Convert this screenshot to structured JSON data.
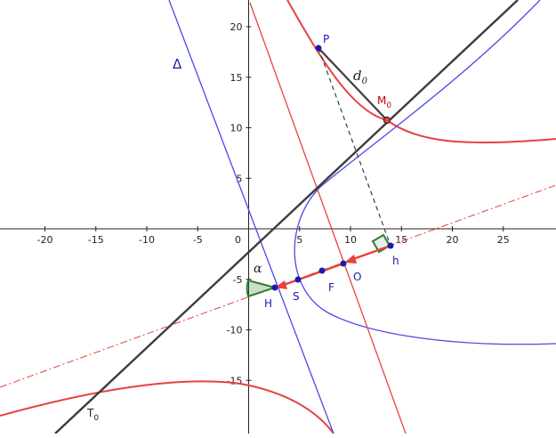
{
  "colors": {
    "axis": "#222222",
    "red": "#e8413d",
    "blue": "#4a4ae8",
    "dark": "#3d3d3d",
    "point": "#1a1ab0",
    "green": "#2e7d32",
    "label_blue": "#1a1ab0",
    "label_red": "#cc0000"
  },
  "axes": {
    "x_ticks": [
      "-20",
      "-15",
      "-10",
      "-5",
      "0",
      "5",
      "10",
      "15",
      "20",
      "25"
    ],
    "y_ticks": [
      "20",
      "15",
      "10",
      "5",
      "-5",
      "-10",
      "-15"
    ]
  },
  "labels": {
    "P": "P",
    "M0_base": "M",
    "M0_sub": "0",
    "d0_base": "d",
    "d0_sub": "0",
    "delta": "Δ",
    "h": "h",
    "O": "O",
    "F": "F",
    "S": "S",
    "H": "H",
    "alpha": "α",
    "T0_base": "T",
    "T0_sub": "0"
  }
}
